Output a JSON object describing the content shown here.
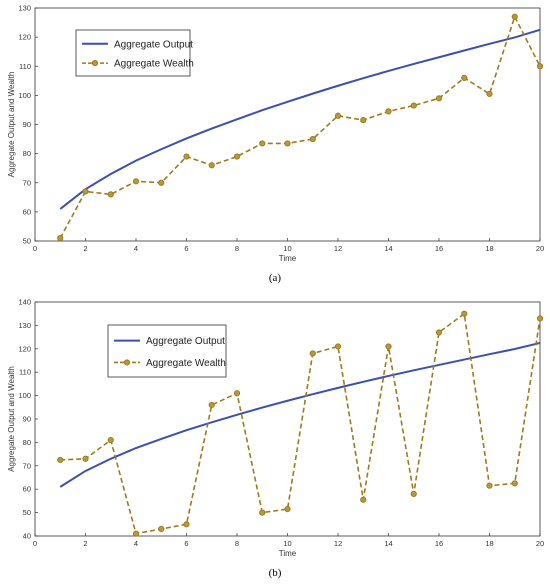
{
  "colors": {
    "output": "#3b4fb0",
    "wealth": "#9c7a1f",
    "marker": "#b89a3a"
  },
  "chart_data": [
    {
      "type": "line",
      "caption": "(a)",
      "xlabel": "Time",
      "ylabel": "Aggregate Output and Wealth",
      "xlim": [
        0,
        20
      ],
      "ylim": [
        50,
        130
      ],
      "xticks": [
        0,
        2,
        4,
        6,
        8,
        10,
        12,
        14,
        16,
        18,
        20
      ],
      "yticks": [
        50,
        60,
        70,
        80,
        90,
        100,
        110,
        120,
        130
      ],
      "legend_position": "top-left",
      "x": [
        1,
        2,
        3,
        4,
        5,
        6,
        7,
        8,
        9,
        10,
        11,
        12,
        13,
        14,
        15,
        16,
        17,
        18,
        19,
        20
      ],
      "series": [
        {
          "name": "Aggregate Output",
          "style": "solid",
          "values": [
            61,
            67.8,
            73,
            77.6,
            81.5,
            85.2,
            88.6,
            91.8,
            94.9,
            97.8,
            100.6,
            103.3,
            105.9,
            108.4,
            110.8,
            113.1,
            115.4,
            117.7,
            119.9,
            122.5
          ]
        },
        {
          "name": "Aggregate Wealth",
          "style": "dashed-marker",
          "values": [
            51,
            67,
            66,
            70.5,
            70,
            79,
            76,
            79,
            83.5,
            83.5,
            85,
            93,
            91.5,
            94.5,
            96.5,
            99,
            106,
            100.5,
            127,
            110
          ]
        }
      ]
    },
    {
      "type": "line",
      "caption": "(b)",
      "xlabel": "Time",
      "ylabel": "Aggregate Output and Wealth",
      "xlim": [
        0,
        20
      ],
      "ylim": [
        40,
        140
      ],
      "xticks": [
        0,
        2,
        4,
        6,
        8,
        10,
        12,
        14,
        16,
        18,
        20
      ],
      "yticks": [
        40,
        50,
        60,
        70,
        80,
        90,
        100,
        110,
        120,
        130,
        140
      ],
      "legend_position": "top-left",
      "x": [
        1,
        2,
        3,
        4,
        5,
        6,
        7,
        8,
        9,
        10,
        11,
        12,
        13,
        14,
        15,
        16,
        17,
        18,
        19,
        20
      ],
      "series": [
        {
          "name": "Aggregate Output",
          "style": "solid",
          "values": [
            61,
            67.8,
            73,
            77.6,
            81.5,
            85.2,
            88.6,
            91.8,
            94.9,
            97.8,
            100.6,
            103.3,
            105.9,
            108.4,
            110.8,
            113.1,
            115.4,
            117.7,
            119.9,
            122.5
          ]
        },
        {
          "name": "Aggregate Wealth",
          "style": "dashed-marker",
          "values": [
            72.5,
            73,
            81,
            41,
            43,
            45,
            96,
            101,
            50,
            51.5,
            118,
            121,
            55.5,
            121,
            58,
            127,
            135,
            61.5,
            62.5,
            133
          ]
        }
      ]
    }
  ]
}
